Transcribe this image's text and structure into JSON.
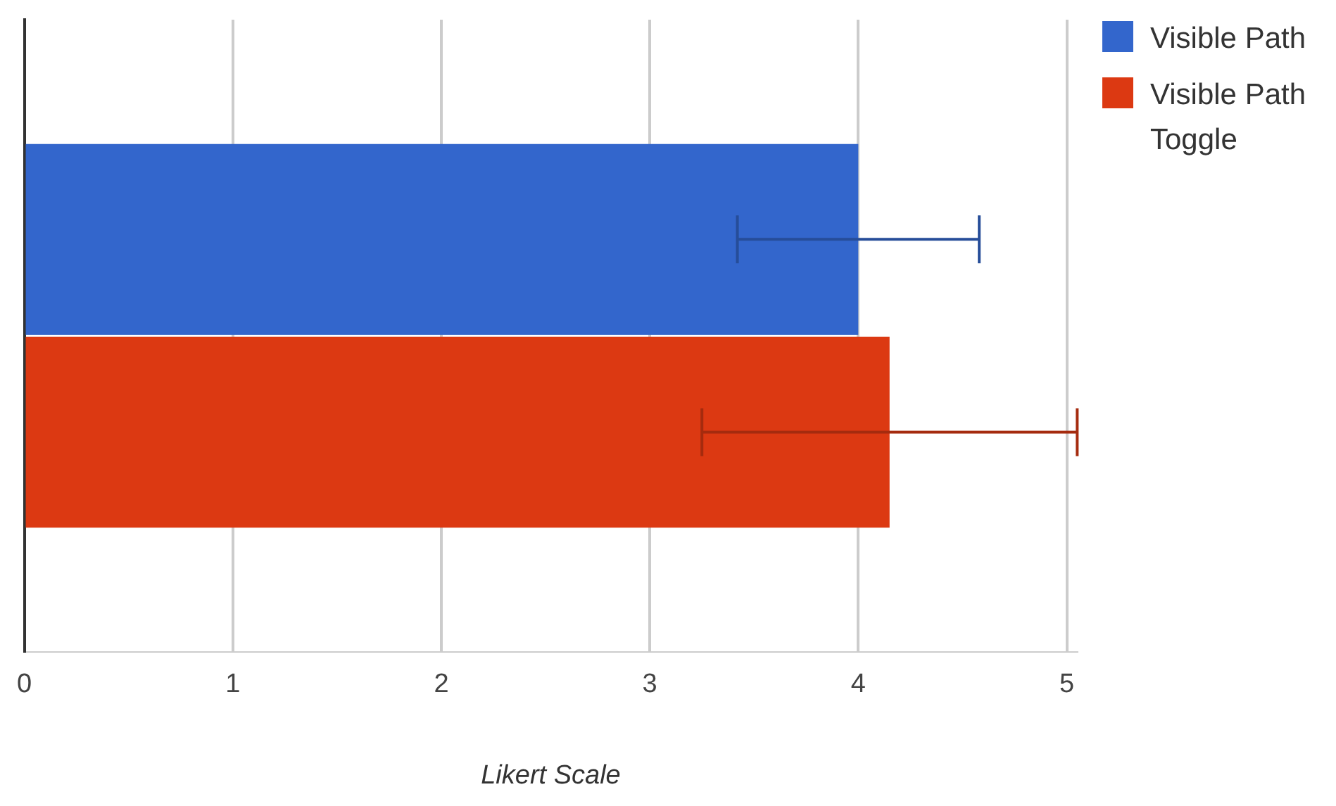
{
  "chart_data": {
    "type": "bar",
    "orientation": "horizontal",
    "xlabel": "Likert Scale",
    "categories": [
      null
    ],
    "series": [
      {
        "name": "Visible Path",
        "color": "#3366cc",
        "values": [
          4.0
        ],
        "errors": [
          0.58
        ]
      },
      {
        "name": "Visible Path Toggle",
        "color": "#dc3912",
        "values": [
          4.15
        ],
        "errors": [
          0.9
        ]
      }
    ],
    "xlim": [
      0,
      5.05
    ],
    "xticks": [
      0,
      1,
      2,
      3,
      4,
      5
    ],
    "grid": "x",
    "legend": "top right"
  }
}
